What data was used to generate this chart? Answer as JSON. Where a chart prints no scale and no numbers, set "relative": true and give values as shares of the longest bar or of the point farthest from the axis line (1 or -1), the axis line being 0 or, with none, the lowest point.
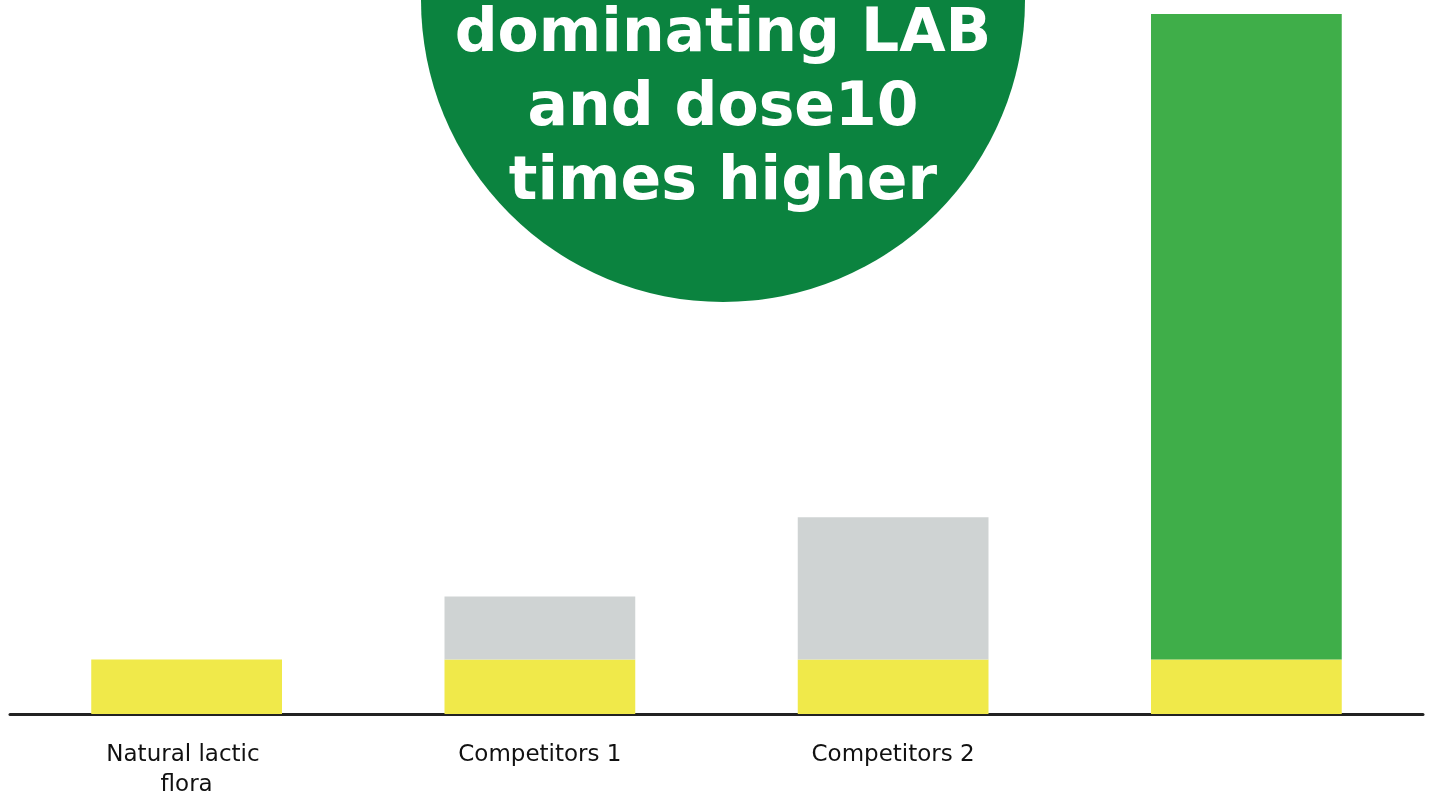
{
  "chart_data": {
    "type": "bar",
    "stacked": true,
    "relative": true,
    "categories": [
      "Natural lactic flora",
      "Competitors 1",
      "Competitors 2",
      null
    ],
    "series": [
      {
        "color": "#f0e94a",
        "values": [
          0.078,
          0.078,
          0.078,
          0.078
        ]
      },
      {
        "color": "#cfd3d3",
        "values": [
          null,
          0.09,
          0.203,
          null
        ]
      },
      {
        "color": "#3fae49",
        "values": [
          null,
          null,
          null,
          0.922
        ]
      }
    ],
    "annotations": [
      "dominating LAB and dose10 times higher"
    ]
  }
}
